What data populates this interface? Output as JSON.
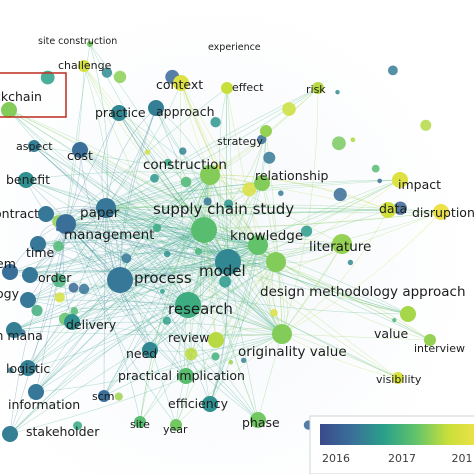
{
  "network": {
    "terms": [
      {
        "label": "site construction",
        "year": 2017.5,
        "weight": 0
      },
      {
        "label": "experience",
        "year": 2018.4,
        "weight": 0
      },
      {
        "label": "challenge",
        "year": 2018.2,
        "weight": 1
      },
      {
        "label": "context",
        "year": 2018.3,
        "weight": 2
      },
      {
        "label": "effect",
        "year": 2018.0,
        "weight": 1
      },
      {
        "label": "risk",
        "year": 2017.9,
        "weight": 1
      },
      {
        "label": "ckchain",
        "year": 2017.6,
        "weight": 2
      },
      {
        "label": "practice",
        "year": 2016.5,
        "weight": 2
      },
      {
        "label": "approach",
        "year": 2016.4,
        "weight": 2
      },
      {
        "label": "strategy",
        "year": 2017.7,
        "weight": 1
      },
      {
        "label": "aspect",
        "year": 2016.4,
        "weight": 1
      },
      {
        "label": "cost",
        "year": 2016.2,
        "weight": 2
      },
      {
        "label": "construction",
        "year": 2017.6,
        "weight": 3
      },
      {
        "label": "benefit",
        "year": 2016.6,
        "weight": 2
      },
      {
        "label": "relationship",
        "year": 2017.6,
        "weight": 2
      },
      {
        "label": "impact",
        "year": 2018.3,
        "weight": 2
      },
      {
        "label": "ontract",
        "year": 2016.3,
        "weight": 2
      },
      {
        "label": "paper",
        "year": 2016.3,
        "weight": 3
      },
      {
        "label": "supply chain study",
        "year": 2017.3,
        "weight": 4
      },
      {
        "label": "data",
        "year": 2018.1,
        "weight": 2
      },
      {
        "label": "disruption",
        "year": 2018.5,
        "weight": 2
      },
      {
        "label": "management",
        "year": 2016.2,
        "weight": 3
      },
      {
        "label": "knowledge",
        "year": 2017.4,
        "weight": 3
      },
      {
        "label": "literature",
        "year": 2017.7,
        "weight": 3
      },
      {
        "label": "time",
        "year": 2016.3,
        "weight": 2
      },
      {
        "label": "em",
        "year": 2016.2,
        "weight": 2
      },
      {
        "label": "order",
        "year": 2016.3,
        "weight": 2
      },
      {
        "label": "process",
        "year": 2016.3,
        "weight": 4
      },
      {
        "label": "model",
        "year": 2016.5,
        "weight": 4
      },
      {
        "label": "ogy",
        "year": 2016.3,
        "weight": 2
      },
      {
        "label": "design methodology approach",
        "year": 2017.6,
        "weight": 3
      },
      {
        "label": "research",
        "year": 2017.0,
        "weight": 4
      },
      {
        "label": "in mana",
        "year": 2016.4,
        "weight": 2
      },
      {
        "label": "delivery",
        "year": 2016.6,
        "weight": 2
      },
      {
        "label": "review",
        "year": 2017.9,
        "weight": 2
      },
      {
        "label": "value",
        "year": 2017.8,
        "weight": 2
      },
      {
        "label": "need",
        "year": 2016.5,
        "weight": 2
      },
      {
        "label": "originality value",
        "year": 2017.6,
        "weight": 3
      },
      {
        "label": "interview",
        "year": 2017.7,
        "weight": 1
      },
      {
        "label": "logistic",
        "year": 2016.4,
        "weight": 2
      },
      {
        "label": "practical implication",
        "year": 2017.3,
        "weight": 2
      },
      {
        "label": "visibility",
        "year": 2018.2,
        "weight": 1
      },
      {
        "label": "information",
        "year": 2016.3,
        "weight": 2
      },
      {
        "label": "scm",
        "year": 2016.2,
        "weight": 1
      },
      {
        "label": "efficiency",
        "year": 2016.6,
        "weight": 2
      },
      {
        "label": "site",
        "year": 2017.3,
        "weight": 1
      },
      {
        "label": "year",
        "year": 2017.5,
        "weight": 1
      },
      {
        "label": "phase",
        "year": 2017.5,
        "weight": 2
      },
      {
        "label": "stakeholder",
        "year": 2016.4,
        "weight": 2
      }
    ],
    "highlighted_term": "ckchain"
  },
  "legend": {
    "ticks": [
      "2016",
      "2017",
      "201"
    ],
    "year_min": 2015.6,
    "year_max": 2018.6,
    "colors": [
      "#3b4a8c",
      "#3a6f9a",
      "#2aa08a",
      "#62c36a",
      "#c8df3a",
      "#f3e24a"
    ]
  }
}
